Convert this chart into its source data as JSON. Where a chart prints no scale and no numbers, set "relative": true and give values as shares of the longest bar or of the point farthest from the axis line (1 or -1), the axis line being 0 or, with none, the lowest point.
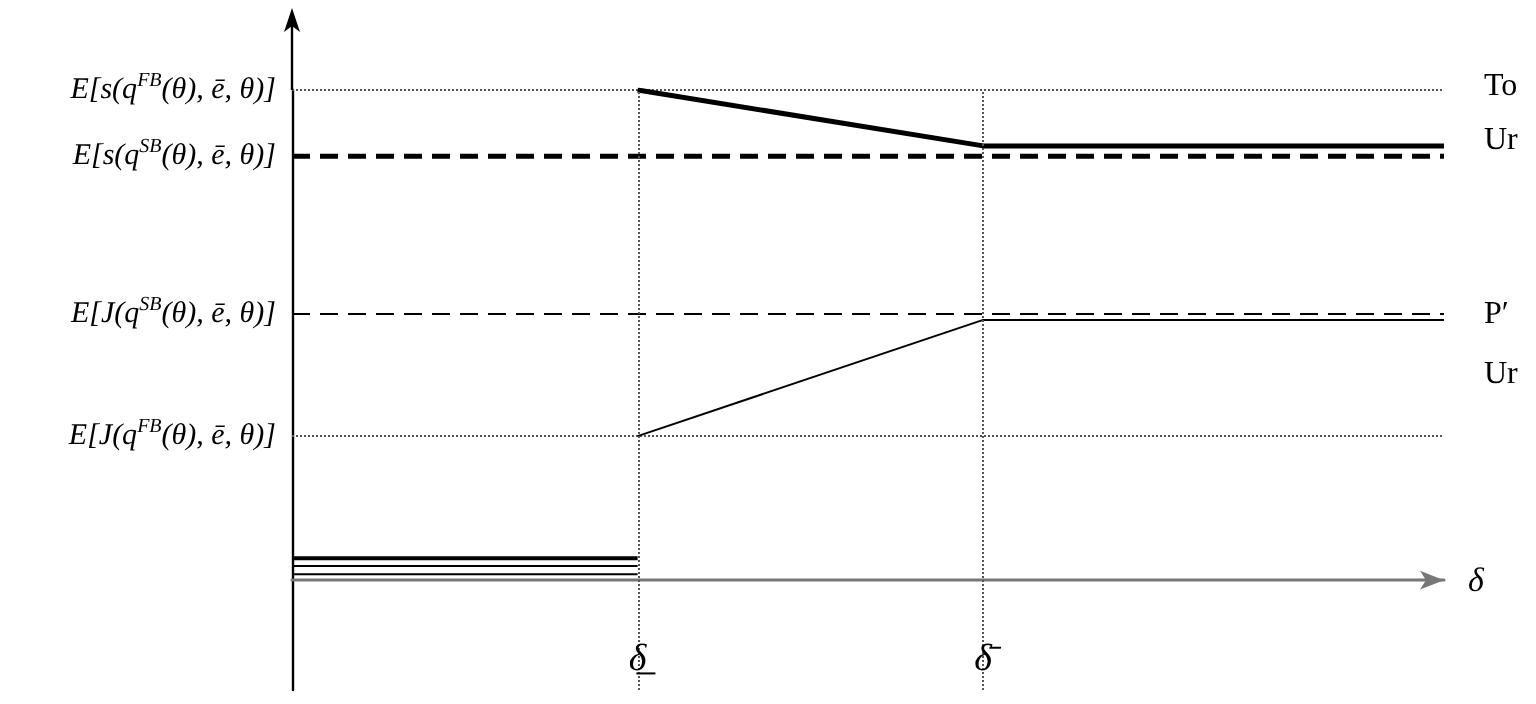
{
  "chart_data": {
    "type": "line",
    "relative": true,
    "xlabel": "δ",
    "categories": [
      null,
      null,
      null,
      "δ̲",
      null,
      null,
      "δ̄",
      null,
      null,
      null,
      null
    ],
    "grid": false,
    "legend": false,
    "annotations": [
      "E[s(q$^{SB}$(θ), ē, θ)]",
      "E[J(q$^{SB}$(θ), ē, θ)]"
    ],
    "series": [
      {
        "name": "To",
        "color": "#000000",
        "line_style": "solid",
        "values": [
          null,
          null,
          null,
          1,
          null,
          null,
          0.886,
          0.886,
          0.886,
          0.886,
          0.886
        ]
      },
      {
        "name": "Ur",
        "color": "#000000",
        "line_style": "dashed",
        "values": [
          0.865,
          0.865,
          0.865,
          0.865,
          0.865,
          0.865,
          0.865,
          0.865,
          0.865,
          0.865,
          0.865
        ]
      },
      {
        "name": "P′",
        "color": "#000000",
        "line_style": "dashed",
        "values": [
          0.543,
          0.543,
          0.543,
          0.543,
          0.543,
          0.543,
          0.543,
          0.543,
          0.543,
          0.543,
          0.543
        ]
      },
      {
        "name": "Ur",
        "color": "#000000",
        "line_style": "solid",
        "values": [
          null,
          null,
          null,
          0.294,
          null,
          null,
          0.531,
          0.531,
          0.531,
          0.531,
          0.531
        ]
      },
      {
        "color": "#000000",
        "line_style": "solid",
        "values": [
          0.045,
          0.045,
          0.045,
          0.045,
          null,
          null,
          null,
          null,
          null,
          null,
          null
        ]
      },
      {
        "color": "#000000",
        "line_style": "solid",
        "values": [
          0.029,
          0.029,
          0.029,
          0.029,
          null,
          null,
          null,
          null,
          null,
          null,
          null
        ]
      },
      {
        "color": "#000000",
        "line_style": "solid",
        "values": [
          0.012,
          0.012,
          0.012,
          0.012,
          null,
          null,
          null,
          null,
          null,
          null,
          null
        ]
      }
    ],
    "ref_lines": [
      {
        "axis": "y",
        "value": 1,
        "label": "E[s(q$^{FB}$(θ), ē, θ)]",
        "line_style": "dotted",
        "color": "#555555"
      },
      {
        "axis": "y",
        "value": 0.294,
        "label": "E[J(q$^{FB}$(θ), ē, θ)]",
        "line_style": "dotted",
        "color": "#555555"
      },
      {
        "axis": "x",
        "value": "δ̲",
        "line_style": "dotted",
        "color": "#555555"
      },
      {
        "axis": "x",
        "value": "δ̄",
        "line_style": "dotted",
        "color": "#555555"
      }
    ]
  }
}
